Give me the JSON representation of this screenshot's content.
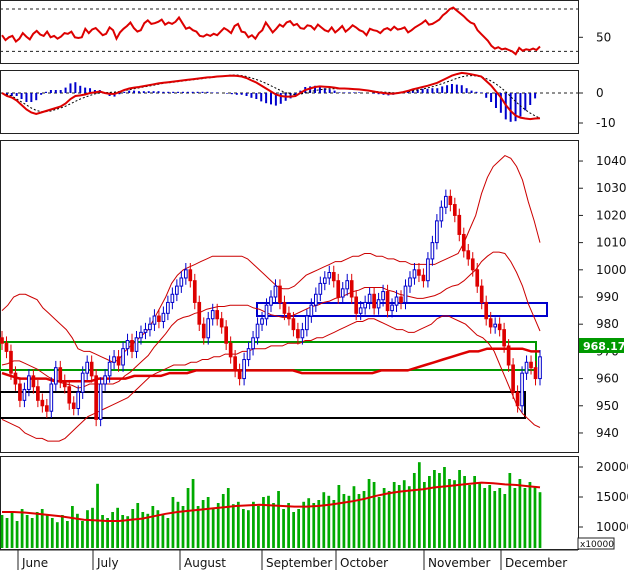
{
  "chart_data": [
    {
      "panel": "rsi",
      "type": "line",
      "y_ticks": [
        50
      ],
      "ylim": [
        15,
        100
      ],
      "reference_lines": [
        30,
        90
      ],
      "line_color": "#dd0000",
      "values": [
        53,
        46,
        50,
        52,
        44,
        48,
        56,
        51,
        47,
        55,
        59,
        54,
        52,
        58,
        50,
        52,
        48,
        51,
        56,
        55,
        58,
        50,
        49,
        50,
        62,
        56,
        61,
        63,
        58,
        53,
        55,
        64,
        60,
        48,
        57,
        62,
        66,
        71,
        63,
        58,
        60,
        70,
        74,
        69,
        70,
        72,
        75,
        68,
        71,
        69,
        72,
        78,
        70,
        62,
        64,
        60,
        58,
        52,
        51,
        54,
        52,
        55,
        53,
        58,
        63,
        60,
        56,
        66,
        69,
        58,
        57,
        50,
        53,
        48,
        56,
        60,
        71,
        64,
        57,
        62,
        68,
        65,
        71,
        73,
        67,
        69,
        63,
        62,
        67,
        66,
        61,
        68,
        64,
        60,
        58,
        64,
        57,
        61,
        66,
        58,
        62,
        67,
        64,
        60,
        58,
        53,
        62,
        60,
        59,
        56,
        61,
        63,
        60,
        65,
        61,
        62,
        64,
        57,
        60,
        64,
        67,
        70,
        74,
        68,
        69,
        72,
        75,
        81,
        85,
        90,
        92,
        88,
        84,
        80,
        75,
        71,
        69,
        60,
        55,
        50,
        45,
        38,
        34,
        36,
        33,
        34,
        32,
        30,
        26,
        35,
        31,
        33,
        32,
        34,
        32,
        37
      ]
    },
    {
      "panel": "macd",
      "type": "line",
      "y_ticks": [
        0,
        -10
      ],
      "ylim": [
        -13,
        7
      ],
      "macd_color": "#dd0000",
      "signal_color": "#000000",
      "histogram_color": "#0000cc",
      "macd": [
        0,
        -1,
        -1.5,
        -2.5,
        -4,
        -5.5,
        -6.5,
        -7,
        -6.5,
        -6,
        -5.5,
        -5,
        -4.5,
        -3.5,
        -2,
        -1,
        -0.8,
        -0.5,
        0,
        0.2,
        0.5,
        0,
        -0.3,
        -0.3,
        0.3,
        1,
        1.5,
        1.8,
        2,
        2.3,
        2.6,
        2.9,
        3.2,
        3.4,
        3.6,
        3.8,
        4,
        4.2,
        4.4,
        4.6,
        4.8,
        5,
        5.2,
        5.3,
        5.5,
        5.6,
        5.7,
        5.8,
        5.7,
        5.5,
        5,
        4.2,
        3.5,
        2.5,
        1.5,
        0.5,
        -0.5,
        -1,
        -1.2,
        -1.2,
        -1,
        0,
        1,
        1.5,
        2,
        2.2,
        2.1,
        2,
        1.8,
        1.5,
        1.5,
        1.4,
        1.3,
        1.2,
        1,
        0.8,
        0.5,
        0.2,
        0,
        -0.2,
        -0.2,
        0,
        0.3,
        0.7,
        1.2,
        1.6,
        2,
        2.4,
        2.9,
        3.4,
        4.2,
        5,
        5.8,
        6.3,
        6.7,
        6.5,
        6.2,
        5.9,
        5.5,
        4,
        2.5,
        0.5,
        -1.5,
        -4,
        -6,
        -7.5,
        -8.2,
        -8.5,
        -8.7,
        -8.5,
        -8.4
      ],
      "signal": [
        0,
        -0.5,
        -1,
        -2,
        -3,
        -4,
        -5,
        -5.8,
        -6.2,
        -6.2,
        -6,
        -5.5,
        -5,
        -4.4,
        -3.6,
        -2.8,
        -2,
        -1.4,
        -0.8,
        -0.3,
        0,
        0.1,
        0.2,
        0.3,
        0.5,
        0.8,
        1.1,
        1.4,
        1.7,
        2,
        2.3,
        2.6,
        2.9,
        3.2,
        3.4,
        3.6,
        3.8,
        4,
        4.2,
        4.4,
        4.6,
        4.8,
        5,
        5.2,
        5.4,
        5.6,
        5.8,
        6,
        6,
        5.8,
        5.5,
        5,
        4.5,
        3.9,
        3.2,
        2.4,
        1.6,
        0.8,
        0.1,
        -0.3,
        -0.5,
        -0.4,
        0,
        0.4,
        0.8,
        1.1,
        1.3,
        1.4,
        1.4,
        1.4,
        1.4,
        1.3,
        1.2,
        1.1,
        1,
        0.8,
        0.6,
        0.4,
        0.3,
        0.2,
        0.1,
        0.1,
        0.2,
        0.4,
        0.7,
        1,
        1.3,
        1.7,
        2.1,
        2.6,
        3.1,
        3.7,
        4.3,
        4.9,
        5.4,
        5.7,
        5.8,
        5.7,
        5.4,
        4.8,
        4,
        3,
        1.8,
        0.4,
        -1.2,
        -2.8,
        -4.3,
        -5.6,
        -6.7,
        -7.6,
        -8.4
      ]
    },
    {
      "panel": "price",
      "type": "candlestick",
      "y_ticks": [
        940,
        950,
        960,
        970,
        980,
        990,
        1000,
        1010,
        1020,
        1030,
        1040
      ],
      "ylim": [
        933,
        1047
      ],
      "last_price": "968.170",
      "bullish_color": "#0000cc",
      "bearish_color": "#dd0000",
      "bollinger_color": "#cc0000",
      "ma_color": "#dd0000",
      "closes": [
        973,
        970,
        962,
        958,
        952,
        956,
        961,
        957,
        952,
        950,
        948,
        958,
        964,
        959,
        957,
        951,
        949,
        955,
        962,
        966,
        961,
        945,
        958,
        961,
        966,
        968,
        965,
        971,
        974,
        970,
        975,
        977,
        978,
        980,
        983,
        981,
        984,
        988,
        991,
        994,
        997,
        1000,
        996,
        988,
        980,
        975,
        982,
        985,
        982,
        979,
        973,
        968,
        963,
        960,
        967,
        971,
        975,
        980,
        982,
        987,
        990,
        994,
        988,
        984,
        982,
        978,
        975,
        978,
        983,
        987,
        991,
        995,
        997,
        999,
        996,
        990,
        993,
        996,
        990,
        984,
        986,
        988,
        991,
        986,
        989,
        992,
        985,
        987,
        990,
        988,
        994,
        997,
        1000,
        998,
        996,
        1004,
        1010,
        1018,
        1023,
        1027,
        1024,
        1020,
        1013,
        1007,
        1004,
        1000,
        994,
        988,
        982,
        979,
        980,
        978,
        972,
        965,
        955,
        950,
        962,
        966,
        964,
        960,
        968
      ],
      "bb_upper": [
        985,
        987,
        990,
        991,
        991,
        990,
        989,
        986,
        984,
        982,
        980,
        978,
        975,
        971,
        970,
        970,
        969,
        968,
        967,
        966,
        967,
        970,
        972,
        974,
        976,
        978,
        982,
        986,
        990,
        995,
        998,
        1000,
        1001,
        1002,
        1003,
        1004,
        1005,
        1005,
        1005,
        1005,
        1005,
        1005,
        1004,
        1002,
        1000,
        998,
        996,
        994,
        993,
        993,
        994,
        996,
        998,
        999,
        1000,
        1001,
        1002,
        1003,
        1003,
        1004,
        1005,
        1005,
        1006,
        1006,
        1005,
        1005,
        1004,
        1004,
        1003,
        1003,
        1002,
        1002,
        1002,
        1002,
        1002,
        1003,
        1004,
        1005,
        1006,
        1010,
        1015,
        1020,
        1028,
        1034,
        1038,
        1040,
        1042,
        1041,
        1038,
        1033,
        1025,
        1018,
        1010
      ],
      "bb_lower": [
        945,
        944,
        943,
        942,
        940,
        939,
        938,
        938,
        937,
        937,
        937,
        938,
        940,
        942,
        944,
        946,
        947,
        948,
        949,
        950,
        951,
        952,
        953,
        955,
        957,
        959,
        961,
        962,
        963,
        964,
        965,
        965,
        965,
        966,
        966,
        967,
        967,
        968,
        968,
        969,
        969,
        969,
        970,
        970,
        971,
        971,
        971,
        972,
        972,
        972,
        973,
        973,
        973,
        974,
        974,
        975,
        975,
        976,
        977,
        978,
        979,
        980,
        981,
        981,
        982,
        982,
        981,
        980,
        979,
        978,
        978,
        977,
        977,
        978,
        979,
        980,
        982,
        983,
        983,
        982,
        981,
        980,
        978,
        976,
        975,
        973,
        970,
        965,
        960,
        955,
        950,
        947,
        945,
        943,
        942
      ],
      "ma": [
        962,
        961,
        960,
        960,
        960,
        960,
        959,
        959,
        959,
        959,
        959,
        960,
        960,
        960,
        960,
        961,
        961,
        961,
        961,
        962,
        962,
        962,
        963,
        963,
        963,
        963,
        963,
        963,
        963,
        963,
        963,
        963,
        963,
        963,
        962,
        962,
        962,
        962,
        962,
        962,
        962,
        962,
        962,
        963,
        963,
        963,
        963,
        964,
        965,
        966,
        967,
        968,
        969,
        970,
        970,
        971,
        971,
        971,
        971,
        971,
        970,
        970
      ]
    },
    {
      "panel": "volume",
      "type": "bar",
      "multiplier_label": "x10000",
      "y_ticks": [
        10000,
        15000,
        20000
      ],
      "ylim": [
        6500,
        21500
      ],
      "bar_color": "#00aa00",
      "ma_color": "#dd0000",
      "values": [
        12000,
        11500,
        12500,
        11000,
        13000,
        12000,
        11500,
        12500,
        13000,
        12000,
        11500,
        10800,
        12000,
        11000,
        13500,
        12200,
        11000,
        12800,
        13200,
        17200,
        12000,
        11500,
        12500,
        13200,
        12000,
        11800,
        13000,
        14000,
        12500,
        12200,
        13500,
        12800,
        12000,
        11500,
        15000,
        14200,
        13500,
        16500,
        18000,
        13500,
        14500,
        15000,
        13200,
        14000,
        15500,
        16500,
        13800,
        14200,
        13000,
        12800,
        14200,
        13500,
        15000,
        15200,
        14000,
        16000,
        13000,
        14000,
        12500,
        13000,
        14200,
        14800,
        14000,
        14500,
        15800,
        15200,
        14500,
        17000,
        15500,
        15200,
        16800,
        15500,
        16000,
        18000,
        17500,
        15000,
        16500,
        16000,
        17500,
        17000,
        17800,
        16800,
        19000,
        20800,
        17500,
        18500,
        19500,
        19000,
        20000,
        18000,
        17800,
        19500,
        18500,
        17000,
        18500,
        17500,
        16500,
        17000,
        16000,
        16500,
        15500,
        19000,
        16500,
        18000,
        16500,
        17500,
        16800,
        15800
      ],
      "ma": [
        12500,
        12500,
        12400,
        12200,
        12000,
        11800,
        11500,
        11200,
        11100,
        11000,
        11000,
        11200,
        11400,
        11800,
        12200,
        12500,
        12700,
        12900,
        13100,
        13300,
        13500,
        13600,
        13700,
        13600,
        13500,
        13400,
        13400,
        13500,
        13700,
        14000,
        14300,
        14700,
        15200,
        15600,
        15900,
        16100,
        16300,
        16600,
        16800,
        17000,
        17200,
        17400,
        17300,
        17100,
        17000,
        16800,
        16600
      ]
    },
    {
      "panel": "time_axis",
      "months": [
        "June",
        "July",
        "August",
        "September",
        "October",
        "November",
        "December"
      ]
    }
  ],
  "price_tag": {
    "text": "968.170",
    "color": "#009900"
  }
}
